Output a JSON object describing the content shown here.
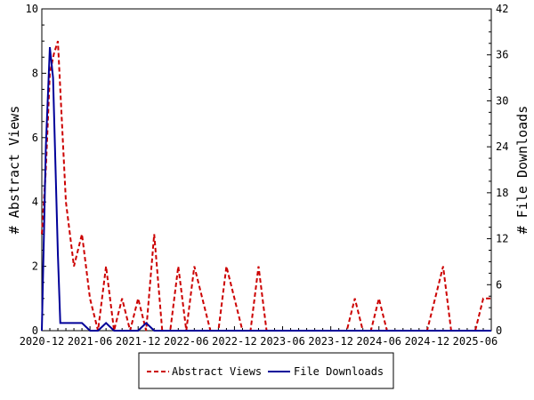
{
  "chart_data": {
    "type": "line",
    "xlabel": "",
    "ylabel": "# Abstract Views",
    "y2label": "# File Downloads",
    "x_tick_labels": [
      "2020-12",
      "2021-06",
      "2021-12",
      "2022-06",
      "2022-12",
      "2023-06",
      "2023-12",
      "2024-06",
      "2024-12",
      "2025-06"
    ],
    "x_range_months": [
      0,
      56
    ],
    "ylim": [
      0,
      10
    ],
    "y_ticks": [
      0,
      2,
      4,
      6,
      8,
      10
    ],
    "y2lim": [
      0,
      42
    ],
    "y2_ticks": [
      0,
      6,
      12,
      18,
      24,
      30,
      36,
      42
    ],
    "legend_position": "bottom-center",
    "grid": false,
    "series": [
      {
        "name": "Abstract Views",
        "axis": "left",
        "color": "#cc0000",
        "style": "dashed",
        "x": [
          0,
          0.3,
          0.6,
          1,
          1.5,
          2,
          2.5,
          3,
          4,
          5,
          6,
          6.5,
          7,
          8,
          9,
          10,
          11,
          12,
          13,
          14,
          15,
          16,
          17,
          18,
          19,
          20,
          21,
          22,
          23,
          24,
          25,
          26,
          27,
          28,
          29,
          30,
          31,
          32,
          33,
          34,
          35,
          36,
          37,
          38,
          39,
          40,
          41,
          42,
          43,
          44,
          45,
          46,
          47,
          48,
          49,
          50,
          51,
          52,
          53,
          54,
          55,
          56
        ],
        "y": [
          3,
          4,
          6,
          7,
          8.5,
          8.7,
          9,
          6,
          3.5,
          2,
          3,
          2,
          1,
          0,
          2,
          0,
          1,
          0,
          1,
          0,
          3,
          0,
          0,
          2,
          0,
          2,
          1,
          0,
          0,
          2,
          1,
          0,
          0,
          2,
          0,
          0,
          0,
          0,
          0,
          0,
          0,
          0,
          0,
          0,
          0,
          0,
          0,
          0,
          0,
          0,
          0,
          0,
          0,
          0,
          0,
          0,
          0,
          0,
          0,
          0,
          0,
          0
        ]
      },
      {
        "name": "File Downloads",
        "axis": "right",
        "color": "#000099",
        "style": "solid",
        "x": [
          0,
          0.5,
          1,
          1.5,
          2,
          3,
          4,
          5,
          6,
          7,
          8,
          9,
          10,
          11,
          12,
          13,
          14,
          15,
          16,
          17,
          18,
          19,
          20,
          21,
          22,
          23,
          24,
          25,
          26,
          27,
          28,
          29,
          30,
          31,
          32,
          33,
          34,
          35,
          36,
          37,
          38,
          39,
          40,
          41,
          42,
          43,
          44,
          45,
          46,
          47,
          48,
          49,
          50,
          51,
          52,
          53,
          54,
          55,
          56
        ],
        "y": [
          1,
          28,
          37,
          20,
          5,
          1,
          1,
          1,
          1,
          1,
          0,
          0,
          1,
          0,
          0,
          0,
          0,
          1,
          0,
          0,
          0,
          0,
          0,
          0,
          0,
          0,
          0,
          0,
          0,
          0,
          0,
          0,
          0,
          0,
          0,
          0,
          0,
          0,
          0,
          0,
          0,
          0,
          0,
          0,
          0,
          0,
          0,
          0,
          0,
          0,
          0,
          0,
          0,
          0,
          0,
          0,
          0,
          0,
          0
        ]
      }
    ],
    "overrides": {
      "abstract_points": [
        [
          0,
          3
        ],
        [
          0.5,
          5
        ],
        [
          1,
          8
        ],
        [
          1.5,
          8.6
        ],
        [
          2,
          9
        ],
        [
          2.5,
          6.5
        ],
        [
          3,
          4
        ],
        [
          4,
          2
        ],
        [
          5,
          3
        ],
        [
          6,
          1
        ],
        [
          7,
          0
        ],
        [
          8,
          2
        ],
        [
          9,
          0
        ],
        [
          10,
          1
        ],
        [
          11,
          0
        ],
        [
          12,
          1
        ],
        [
          13,
          0
        ],
        [
          14,
          3
        ],
        [
          15,
          0
        ],
        [
          16,
          0
        ],
        [
          17,
          2
        ],
        [
          18,
          0
        ],
        [
          19,
          2
        ],
        [
          20,
          1
        ],
        [
          21,
          0
        ],
        [
          22,
          0
        ],
        [
          23,
          2
        ],
        [
          24,
          1
        ],
        [
          25,
          0
        ],
        [
          26,
          0
        ],
        [
          27,
          2
        ],
        [
          28,
          0
        ],
        [
          29,
          0
        ],
        [
          30,
          0
        ],
        [
          31,
          0
        ],
        [
          32,
          0
        ],
        [
          33,
          0
        ],
        [
          34,
          0
        ],
        [
          35,
          0
        ],
        [
          36,
          0
        ],
        [
          37,
          0
        ],
        [
          38,
          0
        ],
        [
          39,
          1
        ],
        [
          40,
          0
        ],
        [
          41,
          0
        ],
        [
          42,
          1
        ],
        [
          43,
          0
        ],
        [
          44,
          0
        ],
        [
          45,
          0
        ],
        [
          46,
          0
        ],
        [
          47,
          0
        ],
        [
          48,
          0
        ],
        [
          49,
          1
        ],
        [
          50,
          2
        ],
        [
          51,
          0
        ],
        [
          52,
          0
        ],
        [
          53,
          0
        ],
        [
          54,
          0
        ],
        [
          55,
          1
        ],
        [
          56,
          1
        ]
      ],
      "download_points": [
        [
          0,
          0
        ],
        [
          0.5,
          24
        ],
        [
          1,
          37
        ],
        [
          1.4,
          33
        ],
        [
          2,
          10
        ],
        [
          2.3,
          1
        ],
        [
          3,
          1
        ],
        [
          4,
          1
        ],
        [
          5,
          1
        ],
        [
          6,
          0
        ],
        [
          7,
          0
        ],
        [
          8,
          1
        ],
        [
          9,
          0
        ],
        [
          10,
          0
        ],
        [
          11,
          0
        ],
        [
          12,
          0
        ],
        [
          13,
          1
        ],
        [
          14,
          0
        ],
        [
          15,
          0
        ],
        [
          16,
          0
        ],
        [
          20,
          0
        ],
        [
          30,
          0
        ],
        [
          40,
          0
        ],
        [
          50,
          0
        ],
        [
          56,
          0
        ]
      ]
    }
  }
}
